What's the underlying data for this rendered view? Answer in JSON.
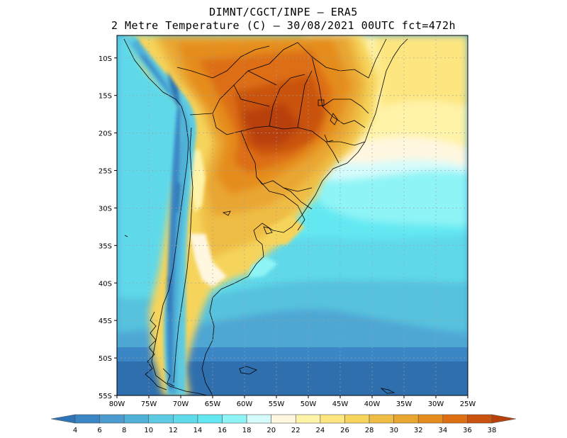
{
  "title": {
    "line1": "DIMNT/CGCT/INPE –  ERA5",
    "line2": "2 Metre Temperature (C) –  30/08/2021 00UTC fct=472h"
  },
  "map": {
    "lon_range": [
      -80,
      -25
    ],
    "lat_range": [
      -55,
      -7
    ],
    "lat_ticks": [
      "10S",
      "15S",
      "20S",
      "25S",
      "30S",
      "35S",
      "40S",
      "45S",
      "50S",
      "55S"
    ],
    "lon_ticks": [
      "80W",
      "75W",
      "70W",
      "65W",
      "60W",
      "55W",
      "50W",
      "45W",
      "40W",
      "35W",
      "30W",
      "25W"
    ]
  },
  "colorbar": {
    "labels": [
      "4",
      "6",
      "8",
      "10",
      "12",
      "14",
      "16",
      "18",
      "20",
      "22",
      "24",
      "26",
      "28",
      "30",
      "32",
      "34",
      "36",
      "38"
    ],
    "colors": [
      "#2e74b6",
      "#3a86c4",
      "#4c9bd0",
      "#4fb1d8",
      "#5ccbe3",
      "#5fdaeb",
      "#63e8f2",
      "#8ef4f6",
      "#d5fbfb",
      "#fff7e0",
      "#fff3a8",
      "#fde680",
      "#f6d45c",
      "#efbd44",
      "#e9a630",
      "#e58d1c",
      "#dd6e12",
      "#c9520e",
      "#b8400a"
    ]
  }
}
